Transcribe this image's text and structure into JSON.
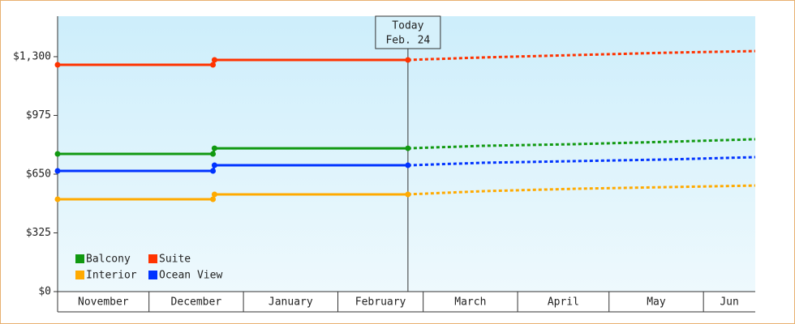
{
  "chart_data": {
    "type": "line",
    "x": [
      0,
      51,
      51.5,
      115,
      140,
      170,
      200,
      229
    ],
    "xlim": [
      0,
      229
    ],
    "xticks": [
      0,
      30,
      61,
      92,
      120,
      151,
      181,
      212
    ],
    "x_labels": [
      "November",
      "December",
      "January",
      "February",
      "March",
      "April",
      "May",
      "Jun"
    ],
    "ylim": [
      0,
      1524
    ],
    "yticks": [
      {
        "value": 0,
        "label": "$0"
      },
      {
        "value": 325,
        "label": "$325"
      },
      {
        "value": 650,
        "label": "$650"
      },
      {
        "value": 975,
        "label": "$975"
      },
      {
        "value": 1300,
        "label": "$1,300"
      }
    ],
    "today": {
      "x": 115,
      "label": [
        "Today",
        "Feb. 24"
      ]
    },
    "legend": "bottom-left",
    "series": [
      {
        "name": "Balcony",
        "color": "#119911",
        "values": [
          762,
          762,
          793,
          793,
          807,
          816,
          829,
          843
        ]
      },
      {
        "name": "Suite",
        "color": "#ff3300",
        "values": [
          1255,
          1255,
          1282,
          1282,
          1296,
          1309,
          1322,
          1331
        ]
      },
      {
        "name": "Interior",
        "color": "#ffaa00",
        "values": [
          511,
          511,
          538,
          538,
          556,
          569,
          578,
          587
        ]
      },
      {
        "name": "Ocean View",
        "color": "#0033ff",
        "values": [
          668,
          668,
          699,
          699,
          713,
          722,
          731,
          744
        ]
      }
    ]
  }
}
